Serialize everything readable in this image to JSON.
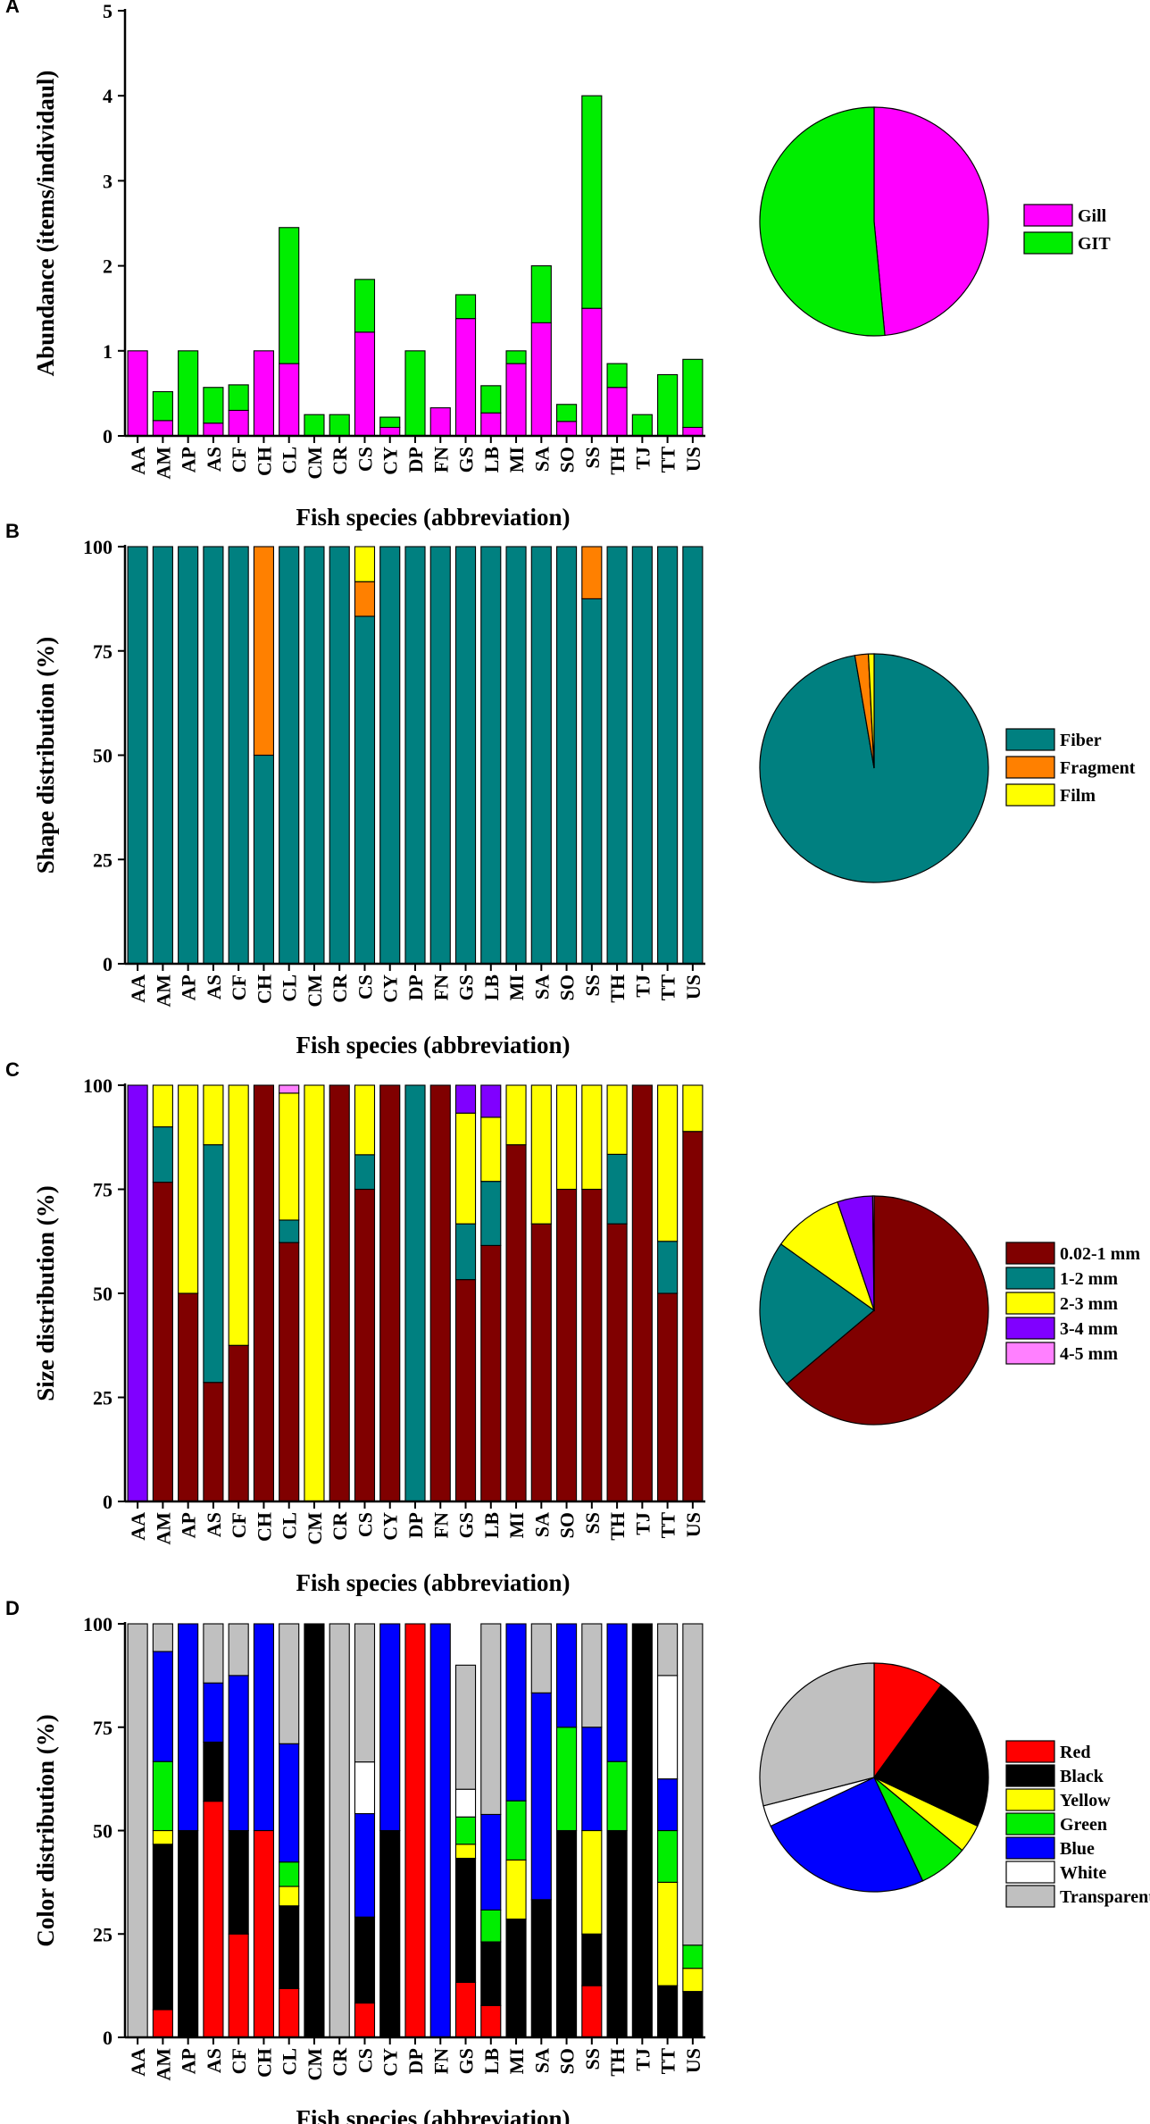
{
  "chart_data": [
    {
      "panel": "A",
      "type": "bar",
      "stacked": true,
      "ylabel": "Abundance (items/individaul)",
      "xlabel": "Fish species (abbreviation)",
      "ylim": [
        0,
        5
      ],
      "yticks": [
        0,
        1,
        2,
        3,
        4,
        5
      ],
      "categories": [
        "AA",
        "AM",
        "AP",
        "AS",
        "CF",
        "CH",
        "CL",
        "CM",
        "CR",
        "CS",
        "CY",
        "DP",
        "FN",
        "GS",
        "LB",
        "MI",
        "SA",
        "SO",
        "SS",
        "TH",
        "TJ",
        "TT",
        "US"
      ],
      "series": [
        {
          "name": "Gill",
          "color": "#FF00FF",
          "values": [
            1.0,
            0.18,
            0,
            0.15,
            0.3,
            1.0,
            0.85,
            0,
            0,
            1.22,
            0.1,
            0,
            0.33,
            1.38,
            0.27,
            0.85,
            1.33,
            0.17,
            1.5,
            0.57,
            0,
            0,
            0.1
          ]
        },
        {
          "name": "GIT",
          "color": "#00EE00",
          "values": [
            0,
            0.34,
            1.0,
            0.42,
            0.3,
            0,
            1.6,
            0.25,
            0.25,
            0.62,
            0.12,
            1.0,
            0,
            0.28,
            0.32,
            0.15,
            0.67,
            0.2,
            2.5,
            0.28,
            0.25,
            0.72,
            0.8
          ]
        }
      ],
      "pie": {
        "labels": [
          "Gill",
          "GIT"
        ],
        "values": [
          48.5,
          51.5
        ],
        "colors": [
          "#FF00FF",
          "#00EE00"
        ]
      }
    },
    {
      "panel": "B",
      "type": "bar",
      "stacked": true,
      "ylabel": "Shape distribution (%)",
      "xlabel": "Fish species (abbreviation)",
      "ylim": [
        0,
        100
      ],
      "yticks": [
        0,
        25,
        50,
        75,
        100
      ],
      "categories": [
        "AA",
        "AM",
        "AP",
        "AS",
        "CF",
        "CH",
        "CL",
        "CM",
        "CR",
        "CS",
        "CY",
        "DP",
        "FN",
        "GS",
        "LB",
        "MI",
        "SA",
        "SO",
        "SS",
        "TH",
        "TJ",
        "TT",
        "US"
      ],
      "series": [
        {
          "name": "Fiber",
          "color": "#008080",
          "values": [
            100,
            100,
            100,
            100,
            100,
            50,
            100,
            100,
            100,
            83.3,
            100,
            100,
            100,
            100,
            100,
            100,
            100,
            100,
            87.5,
            100,
            100,
            100,
            100
          ]
        },
        {
          "name": "Fragment",
          "color": "#FF8000",
          "values": [
            0,
            0,
            0,
            0,
            0,
            50,
            0,
            0,
            0,
            8.3,
            0,
            0,
            0,
            0,
            0,
            0,
            0,
            0,
            12.5,
            0,
            0,
            0,
            0
          ]
        },
        {
          "name": "Film",
          "color": "#FFFF00",
          "values": [
            0,
            0,
            0,
            0,
            0,
            0,
            0,
            0,
            0,
            8.4,
            0,
            0,
            0,
            0,
            0,
            0,
            0,
            0,
            0,
            0,
            0,
            0,
            0
          ]
        }
      ],
      "pie": {
        "labels": [
          "Fiber",
          "Fragment",
          "Film"
        ],
        "values": [
          97.3,
          1.9,
          0.8
        ],
        "colors": [
          "#008080",
          "#FF8000",
          "#FFFF00"
        ]
      }
    },
    {
      "panel": "C",
      "type": "bar",
      "stacked": true,
      "ylabel": "Size distribution (%)",
      "xlabel": "Fish species (abbreviation)",
      "ylim": [
        0,
        100
      ],
      "yticks": [
        0,
        25,
        50,
        75,
        100
      ],
      "categories": [
        "AA",
        "AM",
        "AP",
        "AS",
        "CF",
        "CH",
        "CL",
        "CM",
        "CR",
        "CS",
        "CY",
        "DP",
        "FN",
        "GS",
        "LB",
        "MI",
        "SA",
        "SO",
        "SS",
        "TH",
        "TJ",
        "TT",
        "US"
      ],
      "series": [
        {
          "name": "0.02-1 mm",
          "color": "#800000",
          "values": [
            0,
            76.7,
            50,
            28.6,
            37.5,
            100,
            62.2,
            0,
            100,
            75,
            100,
            0,
            100,
            53.3,
            61.5,
            85.7,
            66.7,
            75,
            75,
            66.7,
            100,
            50,
            88.9
          ]
        },
        {
          "name": "1-2 mm",
          "color": "#008080",
          "values": [
            0,
            13.3,
            0,
            57.1,
            0,
            0,
            5.4,
            0,
            0,
            8.3,
            0,
            100,
            0,
            13.4,
            15.4,
            0,
            0,
            0,
            0,
            16.7,
            0,
            12.5,
            0
          ]
        },
        {
          "name": "2-3 mm",
          "color": "#FFFF00",
          "values": [
            0,
            10,
            50,
            14.3,
            62.5,
            0,
            30.5,
            100,
            0,
            16.7,
            0,
            0,
            0,
            26.6,
            15.4,
            14.3,
            33.3,
            25,
            25,
            16.6,
            0,
            37.5,
            11.1
          ]
        },
        {
          "name": "3-4 mm",
          "color": "#8000FF",
          "values": [
            100,
            0,
            0,
            0,
            0,
            0,
            0,
            0,
            0,
            0,
            0,
            0,
            0,
            6.7,
            7.7,
            0,
            0,
            0,
            0,
            0,
            0,
            0,
            0
          ]
        },
        {
          "name": "4-5 mm",
          "color": "#FF80FF",
          "values": [
            0,
            0,
            0,
            0,
            0,
            0,
            1.9,
            0,
            0,
            0,
            0,
            0,
            0,
            0,
            0,
            0,
            0,
            0,
            0,
            0,
            0,
            0,
            0
          ]
        }
      ],
      "pie": {
        "labels": [
          "0.02-1 mm",
          "1-2 mm",
          "2-3 mm",
          "3-4 mm",
          "4-5 mm"
        ],
        "values": [
          64,
          21,
          10,
          5,
          0.2
        ],
        "colors": [
          "#800000",
          "#008080",
          "#FFFF00",
          "#8000FF",
          "#FF80FF"
        ]
      }
    },
    {
      "panel": "D",
      "type": "bar",
      "stacked": true,
      "ylabel": "Color distribution (%)",
      "xlabel": "Fish species (abbreviation)",
      "ylim": [
        0,
        100
      ],
      "yticks": [
        0,
        25,
        50,
        75,
        100
      ],
      "categories": [
        "AA",
        "AM",
        "AP",
        "AS",
        "CF",
        "CH",
        "CL",
        "CM",
        "CR",
        "CS",
        "CY",
        "DP",
        "FN",
        "GS",
        "LB",
        "MI",
        "SA",
        "SO",
        "SS",
        "TH",
        "TJ",
        "TT",
        "US"
      ],
      "series": [
        {
          "name": "Red",
          "color": "#FF0000",
          "values": [
            0,
            6.7,
            0,
            57.1,
            25,
            50,
            11.8,
            0,
            0,
            8.3,
            0,
            100,
            0,
            13.3,
            7.7,
            0,
            0,
            0,
            12.5,
            0,
            0,
            0,
            0
          ]
        },
        {
          "name": "Black",
          "color": "#000000",
          "values": [
            0,
            40,
            50,
            14.3,
            25,
            0,
            20,
            100,
            0,
            20.8,
            50,
            0,
            0,
            30,
            15.4,
            28.6,
            33.3,
            50,
            12.5,
            50,
            100,
            12.5,
            11.1
          ]
        },
        {
          "name": "Yellow",
          "color": "#FFFF00",
          "values": [
            0,
            3.3,
            0,
            0,
            0,
            0,
            4.7,
            0,
            0,
            0,
            0,
            0,
            0,
            3.4,
            0,
            14.3,
            0,
            0,
            25,
            0,
            0,
            25,
            5.6
          ]
        },
        {
          "name": "Green",
          "color": "#00EE00",
          "values": [
            0,
            16.7,
            0,
            0,
            0,
            0,
            5.9,
            0,
            0,
            0,
            0,
            0,
            0,
            6.6,
            7.7,
            14.3,
            0,
            25,
            0,
            16.7,
            0,
            12.5,
            5.6
          ]
        },
        {
          "name": "Blue",
          "color": "#0000FF",
          "values": [
            0,
            26.6,
            50,
            14.3,
            37.5,
            50,
            28.6,
            0,
            0,
            25,
            50,
            0,
            100,
            0,
            23.1,
            42.8,
            50,
            25,
            25,
            33.3,
            0,
            12.5,
            0
          ]
        },
        {
          "name": "White",
          "color": "#FFFFFF",
          "values": [
            0,
            0,
            0,
            0,
            0,
            0,
            0,
            0,
            0,
            12.5,
            0,
            0,
            0,
            6.7,
            0,
            0,
            0,
            0,
            0,
            0,
            0,
            25,
            0
          ]
        },
        {
          "name": "Transparent",
          "color": "#C0C0C0",
          "values": [
            100,
            6.7,
            0,
            14.3,
            12.5,
            0,
            29,
            0,
            100,
            33.4,
            0,
            0,
            0,
            30,
            46.1,
            0,
            16.7,
            0,
            25,
            0,
            0,
            12.5,
            77.7
          ]
        }
      ],
      "pie": {
        "labels": [
          "Red",
          "Black",
          "Yellow",
          "Green",
          "Blue",
          "White",
          "Transparent"
        ],
        "values": [
          10,
          22,
          4,
          7,
          25,
          3,
          29
        ],
        "colors": [
          "#FF0000",
          "#000000",
          "#FFFF00",
          "#00EE00",
          "#0000FF",
          "#FFFFFF",
          "#C0C0C0"
        ]
      }
    }
  ]
}
